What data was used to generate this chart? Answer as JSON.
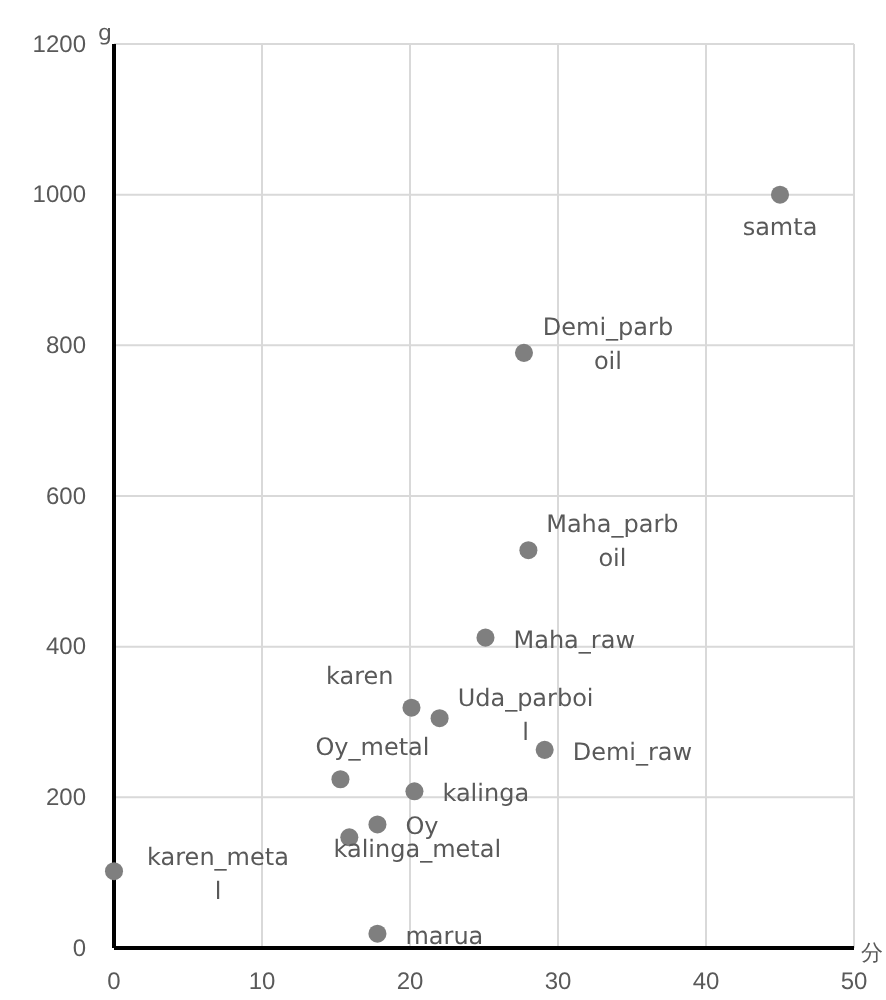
{
  "chart_data": {
    "type": "scatter",
    "xlabel": "分",
    "ylabel": "g",
    "x": [
      45,
      27.7,
      28,
      25.1,
      20.1,
      22,
      29.1,
      15.3,
      20.3,
      17.8,
      15.9,
      0,
      17.8
    ],
    "series": [
      {
        "color": "#7f7f7f",
        "values": [
          1000,
          790,
          528,
          412,
          319,
          305,
          263,
          224,
          208,
          164,
          147,
          102,
          19
        ]
      }
    ],
    "annotations": [
      {
        "text": "samta",
        "x": 45,
        "y": 1000
      },
      {
        "text": "Demi_parboil",
        "x": 27.7,
        "y": 790
      },
      {
        "text": "Maha_parboil",
        "x": 28,
        "y": 528
      },
      {
        "text": "Maha_raw",
        "x": 25.1,
        "y": 412
      },
      {
        "text": "karen",
        "x": 20.1,
        "y": 319
      },
      {
        "text": "Uda_parboil",
        "x": 22,
        "y": 305
      },
      {
        "text": "Demi_raw",
        "x": 29.1,
        "y": 263
      },
      {
        "text": "Oy_metal",
        "x": 15.3,
        "y": 224
      },
      {
        "text": "kalinga",
        "x": 20.3,
        "y": 208
      },
      {
        "text": "Oy",
        "x": 17.8,
        "y": 164
      },
      {
        "text": "kalinga_metal",
        "x": 15.9,
        "y": 147
      },
      {
        "text": "karen_metal",
        "x": 0,
        "y": 102
      },
      {
        "text": "marua",
        "x": 17.8,
        "y": 19
      }
    ],
    "xlim": [
      0,
      50
    ],
    "xticks": [
      0,
      10,
      20,
      30,
      40,
      50
    ],
    "ylim": [
      0,
      1200
    ],
    "yticks": [
      0,
      200,
      400,
      600,
      800,
      1000,
      1200
    ],
    "grid": true,
    "marker": "circle"
  }
}
